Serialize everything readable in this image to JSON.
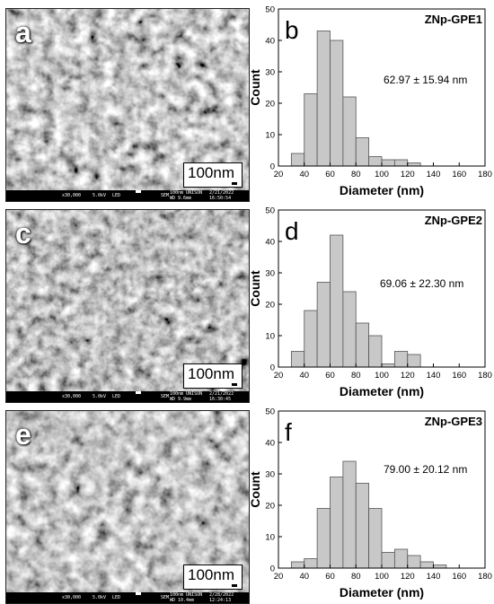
{
  "colors": {
    "bar_fill": "#c8c8c8",
    "bar_stroke": "#555555",
    "sem_bg": "#505050",
    "axis": "#000000"
  },
  "panels": [
    {
      "sem": {
        "letter": "a",
        "scale_label": "100nm",
        "magnification": "x30,000",
        "voltage": "5.0kV",
        "detector": "LED",
        "mode": "SEM",
        "scale_info": "100nm UNISON",
        "date": "2/21/2022",
        "wd": "WD 9.6mm",
        "time": "16:50:54"
      }
    },
    {
      "sem": {
        "letter": "c",
        "scale_label": "100nm",
        "magnification": "x30,000",
        "voltage": "5.0kV",
        "detector": "LED",
        "mode": "SEM",
        "scale_info": "100nm UNISON",
        "date": "2/21/2022",
        "wd": "WD 9.9mm",
        "time": "16:30:45"
      }
    },
    {
      "sem": {
        "letter": "e",
        "scale_label": "100nm",
        "magnification": "x30,000",
        "voltage": "5.0kV",
        "detector": "LED",
        "mode": "SEM",
        "scale_info": "100nm UNISON",
        "date": "2/28/2022",
        "wd": "WD 10.4mm",
        "time": "12:24:13"
      }
    }
  ],
  "chart_data": [
    {
      "type": "bar",
      "panel_letter": "b",
      "title": "ZNp-GPE1",
      "annotation": "62.97 ± 15.94 nm",
      "xlabel": "Diameter (nm)",
      "ylabel": "Count",
      "xlim": [
        20,
        180
      ],
      "ylim": [
        0,
        50
      ],
      "xticks": [
        20,
        40,
        60,
        80,
        100,
        120,
        140,
        160,
        180
      ],
      "xtick_labels": [
        "20",
        "40",
        "60",
        "80",
        "100",
        "120",
        "140",
        "160",
        "180"
      ],
      "yticks": [
        0,
        10,
        20,
        30,
        40,
        50
      ],
      "ytick_labels": [
        "0",
        "10",
        "20",
        "30",
        "40",
        "50"
      ],
      "bin_width": 10,
      "bin_centers": [
        35,
        45,
        55,
        65,
        75,
        85,
        95,
        105,
        115,
        125
      ],
      "values": [
        4,
        23,
        43,
        40,
        22,
        9,
        3,
        2,
        2,
        1
      ]
    },
    {
      "type": "bar",
      "panel_letter": "d",
      "title": "ZNp-GPE2",
      "annotation": "69.06  ± 22.30 nm",
      "xlabel": "Diameter (nm)",
      "ylabel": "Count",
      "xlim": [
        20,
        180
      ],
      "ylim": [
        0,
        50
      ],
      "xticks": [
        20,
        40,
        60,
        80,
        100,
        120,
        140,
        160,
        180
      ],
      "xtick_labels": [
        "20",
        "40",
        "60",
        "80",
        "100",
        "120",
        "140",
        "160",
        "180"
      ],
      "yticks": [
        0,
        10,
        20,
        30,
        40,
        50
      ],
      "ytick_labels": [
        "0",
        "10",
        "20",
        "30",
        "40",
        "50"
      ],
      "bin_width": 10,
      "bin_centers": [
        35,
        45,
        55,
        65,
        75,
        85,
        95,
        105,
        115,
        125
      ],
      "values": [
        5,
        18,
        27,
        42,
        24,
        14,
        10,
        1,
        5,
        4
      ]
    },
    {
      "type": "bar",
      "panel_letter": "f",
      "title": "ZNp-GPE3",
      "annotation": "79.00 ± 20.12 nm",
      "xlabel": "Diameter (nm)",
      "ylabel": "Count",
      "xlim": [
        20,
        180
      ],
      "ylim": [
        0,
        50
      ],
      "xticks": [
        20,
        40,
        60,
        80,
        100,
        120,
        140,
        160,
        180
      ],
      "xtick_labels": [
        "20",
        "40",
        "60",
        "80",
        "100",
        "120",
        "140",
        "160",
        "180"
      ],
      "yticks": [
        0,
        10,
        20,
        30,
        40,
        50
      ],
      "ytick_labels": [
        "0",
        "10",
        "20",
        "30",
        "40",
        "50"
      ],
      "bin_width": 10,
      "bin_centers": [
        35,
        45,
        55,
        65,
        75,
        85,
        95,
        105,
        115,
        125,
        135,
        145
      ],
      "values": [
        2,
        3,
        19,
        29,
        34,
        27,
        19,
        5,
        6,
        4,
        2,
        1
      ]
    }
  ]
}
